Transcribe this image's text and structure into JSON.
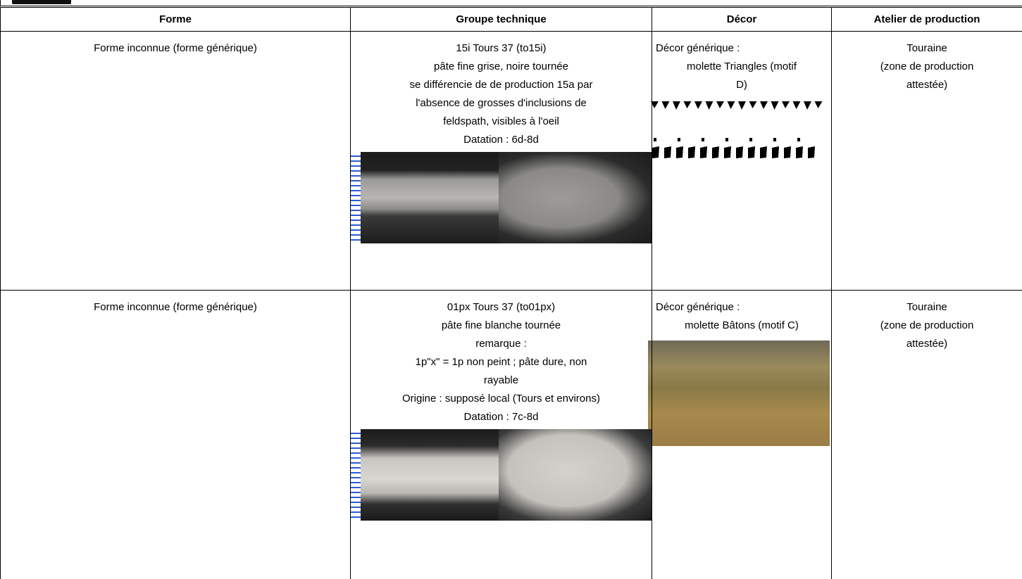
{
  "table": {
    "columns": [
      "Forme",
      "Groupe technique",
      "Décor",
      "Atelier de production"
    ],
    "rows": [
      {
        "forme": "Forme inconnue (forme  générique)",
        "groupe": [
          "15i Tours 37 (to15i)",
          "pâte fine grise, noire tournée",
          "se différencie de de production 15a par",
          "l'absence de grosses d'inclusions de",
          "feldspath, visibles à l'oeil",
          "Datation : 6d-8d"
        ],
        "decor_title": "Décor générique :",
        "decor": [
          "molette Triangles (motif",
          "D)"
        ],
        "atelier": [
          "Touraine",
          "(zone de production",
          "attestée)"
        ]
      },
      {
        "forme": "Forme inconnue (forme  générique)",
        "groupe": [
          "01px Tours 37 (to01px)",
          "pâte fine blanche tournée",
          "remarque :",
          "1p\"x\" = 1p non peint ; pâte dure, non",
          "rayable",
          "Origine : supposé local (Tours et environs)",
          "Datation : 7c-8d"
        ],
        "decor_title": "Décor générique :",
        "decor": [
          "molette Bâtons (motif C)"
        ],
        "atelier": [
          "Touraine",
          "(zone de production",
          "attestée)"
        ]
      }
    ]
  }
}
